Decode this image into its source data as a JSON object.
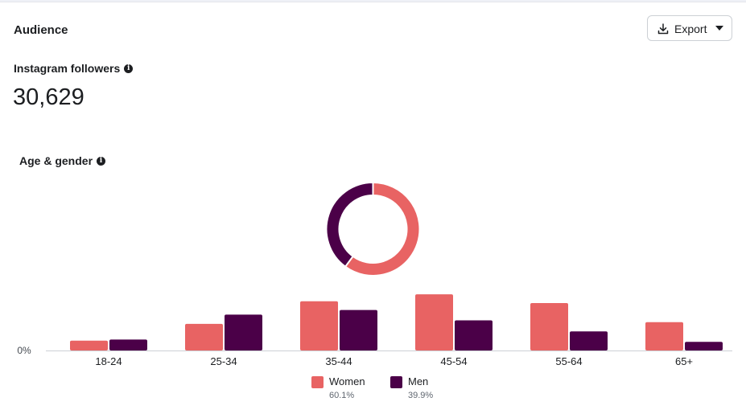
{
  "audience": {
    "title": "Audience",
    "export_label": "Export",
    "followers_label": "Instagram followers",
    "followers_value": "30,629",
    "age_gender_label": "Age & gender",
    "info_glyph": "i"
  },
  "colors": {
    "women": "#e86363",
    "men": "#4b0048",
    "axis": "#ccd0d5"
  },
  "chart_data": [
    {
      "type": "pie",
      "variant": "donut",
      "series": [
        {
          "name": "Women",
          "value": 60.1
        },
        {
          "name": "Men",
          "value": 39.9
        }
      ]
    },
    {
      "type": "bar",
      "categories": [
        "18-24",
        "25-34",
        "35-44",
        "45-54",
        "55-64",
        "65+"
      ],
      "series": [
        {
          "name": "Women",
          "values": [
            1.7,
            4.6,
            8.5,
            9.7,
            8.2,
            4.9
          ]
        },
        {
          "name": "Men",
          "values": [
            1.9,
            6.2,
            7.0,
            5.2,
            3.3,
            1.5
          ]
        }
      ],
      "ytick_label": "0%",
      "ylim": [
        0,
        10
      ],
      "grid": false,
      "legend_position": "bottom-center"
    }
  ],
  "legend": [
    {
      "name": "Women",
      "pct": "60.1%"
    },
    {
      "name": "Men",
      "pct": "39.9%"
    }
  ]
}
